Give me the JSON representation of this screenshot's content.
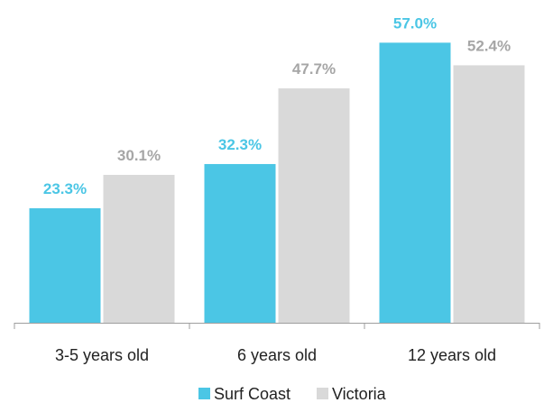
{
  "chart_data": {
    "type": "bar",
    "categories": [
      "3-5 years old",
      "6 years old",
      "12 years old"
    ],
    "series": [
      {
        "name": "Surf Coast",
        "values": [
          23.3,
          32.3,
          57.0
        ],
        "labels": [
          "23.3%",
          "32.3%",
          "57.0%"
        ],
        "color": "#4BC6E5",
        "label_color": "#4BC6E5"
      },
      {
        "name": "Victoria",
        "values": [
          30.1,
          47.7,
          52.4
        ],
        "labels": [
          "30.1%",
          "47.7%",
          "52.4%"
        ],
        "color": "#D9D9D9",
        "label_color": "#A6A6A6"
      }
    ],
    "ylim": [
      0,
      60
    ],
    "grid": false,
    "legend_position": "bottom-center",
    "axis_color": "#9E9E9E"
  }
}
